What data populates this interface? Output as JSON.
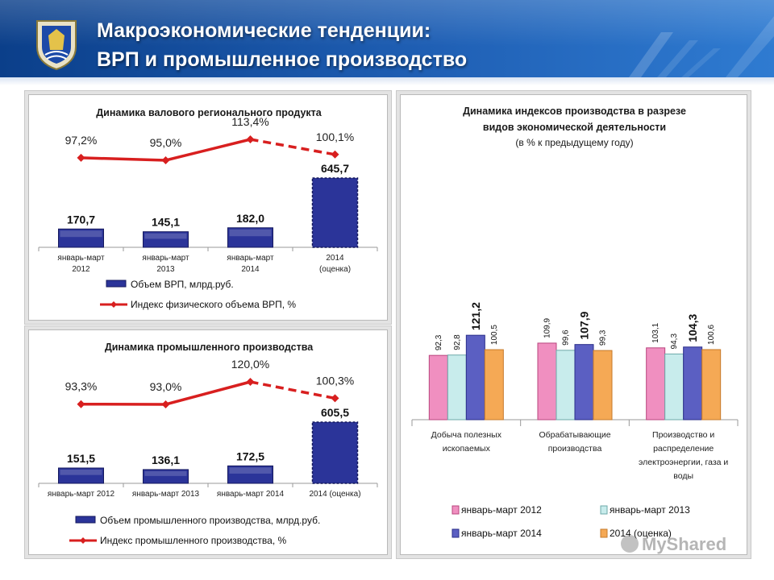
{
  "header": {
    "title_line1": "Макроэкономические тенденции:",
    "title_line2": "ВРП и промышленное производство"
  },
  "colors": {
    "bar_blue": "#2b3499",
    "line_red": "#d81f1f",
    "series_2012": "#f08fc0",
    "series_2013": "#c8ecec",
    "series_2014": "#5b5fc2",
    "series_2014_est": "#f5a955"
  },
  "watermark": {
    "text": "MyShared"
  },
  "chart_data": [
    {
      "type": "bar",
      "title": "Динамика валового регионального продукта",
      "categories": [
        [
          "январь-март",
          "2012"
        ],
        [
          "январь-март",
          "2013"
        ],
        [
          "январь-март",
          "2014"
        ],
        [
          "2014",
          "(оценка)"
        ]
      ],
      "series": [
        {
          "name": "Объем ВРП, млрд.руб.",
          "values": [
            170.7,
            145.1,
            182.0,
            645.7
          ],
          "labels": [
            "170,7",
            "145,1",
            "182,0",
            "645,7"
          ]
        },
        {
          "name": "Индекс физического объема ВРП, %",
          "type": "line",
          "values": [
            97.2,
            95.0,
            113.4,
            100.1
          ],
          "labels": [
            "97,2%",
            "95,0%",
            "113,4%",
            "100,1%"
          ]
        }
      ]
    },
    {
      "type": "bar",
      "title": "Динамика промышленного производства",
      "categories": [
        [
          "январь-март 2012"
        ],
        [
          "январь-март 2013"
        ],
        [
          "январь-март 2014"
        ],
        [
          "2014 (оценка)"
        ]
      ],
      "series": [
        {
          "name": "Объем промышленного производства, млрд.руб.",
          "values": [
            151.5,
            136.1,
            172.5,
            605.5
          ],
          "labels": [
            "151,5",
            "136,1",
            "172,5",
            "605,5"
          ]
        },
        {
          "name": "Индекс промышленного производства, %",
          "type": "line",
          "values": [
            93.3,
            93.0,
            120.0,
            100.3
          ],
          "labels": [
            "93,3%",
            "93,0%",
            "120,0%",
            "100,3%"
          ]
        }
      ]
    },
    {
      "type": "bar",
      "title": "Динамика индексов производства в разрезе",
      "title_line2": "видов экономической деятельности",
      "subtitle": "(в % к предыдущему году)",
      "categories": [
        [
          "Добыча полезных",
          "ископаемых"
        ],
        [
          "Обрабатывающие",
          "производства"
        ],
        [
          "Производство и",
          "распределение",
          "электроэнергии, газа и",
          "воды"
        ]
      ],
      "series": [
        {
          "name": "январь-март 2012",
          "values": [
            92.3,
            109.9,
            103.1
          ],
          "labels": [
            "92,3",
            "109,9",
            "103,1"
          ]
        },
        {
          "name": "январь-март 2013",
          "values": [
            92.8,
            99.6,
            94.3
          ],
          "labels": [
            "92,8",
            "99,6",
            "94,3"
          ]
        },
        {
          "name": "январь-март 2014",
          "values": [
            121.2,
            107.9,
            104.3
          ],
          "labels": [
            "121,2",
            "107,9",
            "104,3"
          ]
        },
        {
          "name": "2014 (оценка)",
          "values": [
            100.5,
            99.3,
            100.6
          ],
          "labels": [
            "100,5",
            "99,3",
            "100,6"
          ]
        }
      ]
    }
  ]
}
